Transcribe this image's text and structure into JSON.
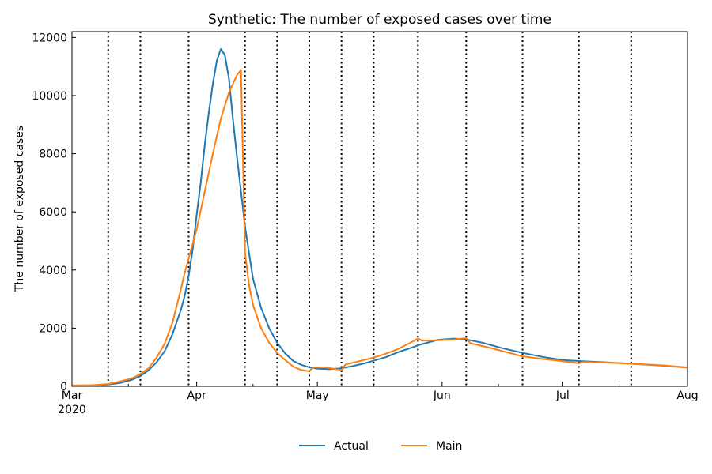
{
  "chart_data": {
    "type": "line",
    "title": "Synthetic: The number of exposed cases over time",
    "xlabel": "",
    "ylabel": "The number of exposed cases",
    "x_axis": {
      "type": "date",
      "range": [
        "2020-03-01",
        "2020-08-01"
      ],
      "ticks": [
        {
          "date": "2020-03-01",
          "label": "Mar",
          "sublabel": "2020"
        },
        {
          "date": "2020-04-01",
          "label": "Apr"
        },
        {
          "date": "2020-05-01",
          "label": "May"
        },
        {
          "date": "2020-06-01",
          "label": "Jun"
        },
        {
          "date": "2020-07-01",
          "label": "Jul"
        },
        {
          "date": "2020-08-01",
          "label": "Aug"
        }
      ]
    },
    "ylim": [
      0,
      12200
    ],
    "yticks": [
      0,
      2000,
      4000,
      6000,
      8000,
      10000,
      12000
    ],
    "grid": false,
    "legend_position": "bottom-center",
    "change_points": [
      "2020-03-10",
      "2020-03-18",
      "2020-03-30",
      "2020-04-13",
      "2020-04-21",
      "2020-04-29",
      "2020-05-07",
      "2020-05-15",
      "2020-05-26",
      "2020-06-07",
      "2020-06-21",
      "2020-07-05",
      "2020-07-18"
    ],
    "series": [
      {
        "name": "Actual",
        "color": "#1f77b4",
        "points": [
          [
            "2020-03-01",
            20
          ],
          [
            "2020-03-06",
            30
          ],
          [
            "2020-03-10",
            60
          ],
          [
            "2020-03-13",
            120
          ],
          [
            "2020-03-16",
            230
          ],
          [
            "2020-03-18",
            350
          ],
          [
            "2020-03-20",
            550
          ],
          [
            "2020-03-22",
            820
          ],
          [
            "2020-03-24",
            1200
          ],
          [
            "2020-03-26",
            1800
          ],
          [
            "2020-03-28",
            2600
          ],
          [
            "2020-03-29",
            3100
          ],
          [
            "2020-03-30",
            3800
          ],
          [
            "2020-03-31",
            4700
          ],
          [
            "2020-04-01",
            5900
          ],
          [
            "2020-04-02",
            7000
          ],
          [
            "2020-04-03",
            8300
          ],
          [
            "2020-04-04",
            9400
          ],
          [
            "2020-04-05",
            10400
          ],
          [
            "2020-04-06",
            11200
          ],
          [
            "2020-04-07",
            11600
          ],
          [
            "2020-04-08",
            11400
          ],
          [
            "2020-04-09",
            10600
          ],
          [
            "2020-04-10",
            9200
          ],
          [
            "2020-04-11",
            7900
          ],
          [
            "2020-04-12",
            6700
          ],
          [
            "2020-04-13",
            5500
          ],
          [
            "2020-04-14",
            4600
          ],
          [
            "2020-04-15",
            3700
          ],
          [
            "2020-04-17",
            2700
          ],
          [
            "2020-04-19",
            2000
          ],
          [
            "2020-04-21",
            1500
          ],
          [
            "2020-04-23",
            1130
          ],
          [
            "2020-04-25",
            870
          ],
          [
            "2020-04-27",
            740
          ],
          [
            "2020-04-29",
            650
          ],
          [
            "2020-05-01",
            610
          ],
          [
            "2020-05-04",
            590
          ],
          [
            "2020-05-07",
            620
          ],
          [
            "2020-05-10",
            700
          ],
          [
            "2020-05-13",
            800
          ],
          [
            "2020-05-15",
            880
          ],
          [
            "2020-05-18",
            1000
          ],
          [
            "2020-05-21",
            1170
          ],
          [
            "2020-05-24",
            1310
          ],
          [
            "2020-05-27",
            1450
          ],
          [
            "2020-05-31",
            1600
          ],
          [
            "2020-06-04",
            1640
          ],
          [
            "2020-06-07",
            1610
          ],
          [
            "2020-06-11",
            1500
          ],
          [
            "2020-06-16",
            1310
          ],
          [
            "2020-06-21",
            1150
          ],
          [
            "2020-06-26",
            1010
          ],
          [
            "2020-07-01",
            900
          ],
          [
            "2020-07-06",
            860
          ],
          [
            "2020-07-11",
            830
          ],
          [
            "2020-07-16",
            790
          ],
          [
            "2020-07-21",
            750
          ],
          [
            "2020-07-26",
            710
          ],
          [
            "2020-08-01",
            640
          ]
        ]
      },
      {
        "name": "Main",
        "color": "#ff7f0e",
        "points": [
          [
            "2020-03-01",
            30
          ],
          [
            "2020-03-06",
            40
          ],
          [
            "2020-03-10",
            80
          ],
          [
            "2020-03-13",
            170
          ],
          [
            "2020-03-16",
            280
          ],
          [
            "2020-03-18",
            420
          ],
          [
            "2020-03-20",
            620
          ],
          [
            "2020-03-22",
            980
          ],
          [
            "2020-03-24",
            1460
          ],
          [
            "2020-03-26",
            2200
          ],
          [
            "2020-03-28",
            3300
          ],
          [
            "2020-03-29",
            3900
          ],
          [
            "2020-03-30",
            4400
          ],
          [
            "2020-03-31",
            4900
          ],
          [
            "2020-04-01",
            5400
          ],
          [
            "2020-04-03",
            6700
          ],
          [
            "2020-04-05",
            8000
          ],
          [
            "2020-04-07",
            9200
          ],
          [
            "2020-04-09",
            10100
          ],
          [
            "2020-04-11",
            10700
          ],
          [
            "2020-04-12",
            10880
          ],
          [
            "2020-04-13",
            4600
          ],
          [
            "2020-04-14",
            3500
          ],
          [
            "2020-04-15",
            2800
          ],
          [
            "2020-04-17",
            2000
          ],
          [
            "2020-04-19",
            1500
          ],
          [
            "2020-04-21",
            1150
          ],
          [
            "2020-04-23",
            900
          ],
          [
            "2020-04-25",
            680
          ],
          [
            "2020-04-27",
            560
          ],
          [
            "2020-04-29",
            520
          ],
          [
            "2020-04-30",
            650
          ],
          [
            "2020-05-03",
            650
          ],
          [
            "2020-05-07",
            560
          ],
          [
            "2020-05-08",
            750
          ],
          [
            "2020-05-11",
            850
          ],
          [
            "2020-05-15",
            990
          ],
          [
            "2020-05-18",
            1120
          ],
          [
            "2020-05-21",
            1280
          ],
          [
            "2020-05-25",
            1560
          ],
          [
            "2020-05-26",
            1650
          ],
          [
            "2020-05-27",
            1570
          ],
          [
            "2020-05-30",
            1580
          ],
          [
            "2020-06-04",
            1610
          ],
          [
            "2020-06-07",
            1660
          ],
          [
            "2020-06-08",
            1480
          ],
          [
            "2020-06-13",
            1320
          ],
          [
            "2020-06-21",
            1030
          ],
          [
            "2020-06-26",
            940
          ],
          [
            "2020-07-01",
            860
          ],
          [
            "2020-07-05",
            790
          ],
          [
            "2020-07-06",
            840
          ],
          [
            "2020-07-16",
            790
          ],
          [
            "2020-07-26",
            720
          ],
          [
            "2020-08-01",
            650
          ]
        ]
      }
    ]
  }
}
